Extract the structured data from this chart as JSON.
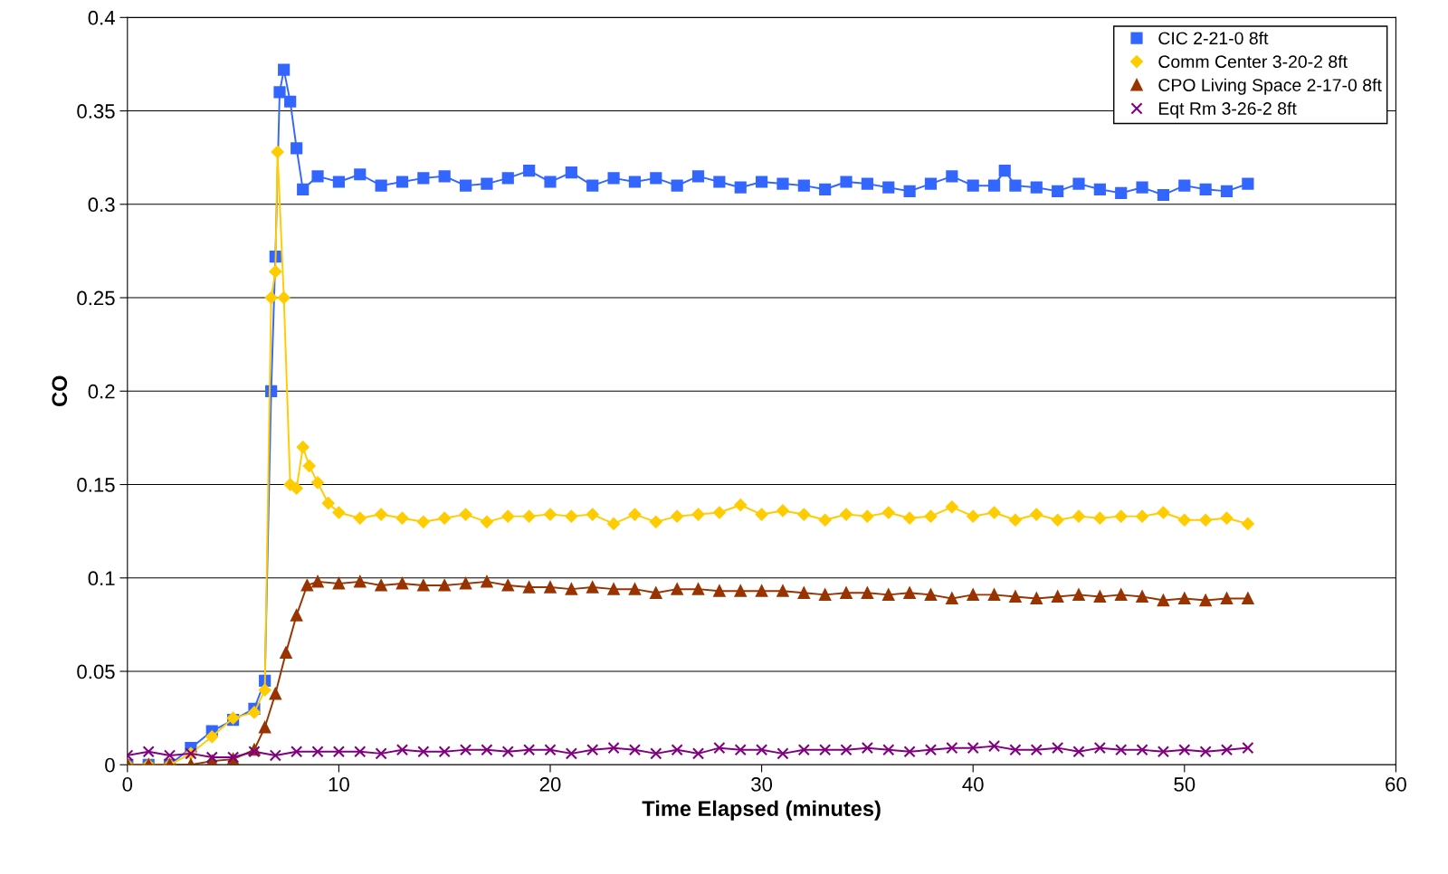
{
  "chart_data": {
    "type": "line",
    "xlabel": "Time Elapsed (minutes)",
    "ylabel": "CO",
    "xlim": [
      0,
      60
    ],
    "ylim": [
      0,
      0.4
    ],
    "xticks": [
      0,
      10,
      20,
      30,
      40,
      50,
      60
    ],
    "yticks": [
      0,
      0.05,
      0.1,
      0.15,
      0.2,
      0.25,
      0.3,
      0.35,
      0.4
    ],
    "grid": "y",
    "legend": "top right",
    "series": [
      {
        "name": "CIC 2-21-0 8ft",
        "color": "#3366ff",
        "marker": "square",
        "x": [
          0,
          1,
          2,
          3,
          4,
          5,
          6,
          6.5,
          6.8,
          7,
          7.2,
          7.4,
          7.7,
          8,
          8.3,
          9,
          10,
          11,
          12,
          13,
          14,
          15,
          16,
          17,
          18,
          19,
          20,
          21,
          22,
          23,
          24,
          25,
          26,
          27,
          28,
          29,
          30,
          31,
          32,
          33,
          34,
          35,
          36,
          37,
          38,
          39,
          40,
          41,
          41.5,
          42,
          43,
          44,
          45,
          46,
          47,
          48,
          49,
          50,
          51,
          52,
          53
        ],
        "values": [
          0,
          0,
          0,
          0.009,
          0.018,
          0.024,
          0.03,
          0.045,
          0.2,
          0.272,
          0.36,
          0.372,
          0.355,
          0.33,
          0.308,
          0.315,
          0.312,
          0.316,
          0.31,
          0.312,
          0.314,
          0.315,
          0.31,
          0.311,
          0.314,
          0.318,
          0.312,
          0.317,
          0.31,
          0.314,
          0.312,
          0.314,
          0.31,
          0.315,
          0.312,
          0.309,
          0.312,
          0.311,
          0.31,
          0.308,
          0.312,
          0.311,
          0.309,
          0.307,
          0.311,
          0.315,
          0.31,
          0.31,
          0.318,
          0.31,
          0.309,
          0.307,
          0.311,
          0.308,
          0.306,
          0.309,
          0.305,
          0.31,
          0.308,
          0.307,
          0.311
        ]
      },
      {
        "name": "Comm Center 3-20-2 8ft",
        "color": "#ffcc00",
        "marker": "diamond",
        "x": [
          0,
          1,
          2,
          3,
          4,
          5,
          6,
          6.5,
          6.8,
          7,
          7.1,
          7.4,
          7.7,
          8,
          8.3,
          8.6,
          9,
          9.5,
          10,
          11,
          12,
          13,
          14,
          15,
          16,
          17,
          18,
          19,
          20,
          21,
          22,
          23,
          24,
          25,
          26,
          27,
          28,
          29,
          30,
          31,
          32,
          33,
          34,
          35,
          36,
          37,
          38,
          39,
          40,
          41,
          42,
          43,
          44,
          45,
          46,
          47,
          48,
          49,
          50,
          51,
          52,
          53
        ],
        "values": [
          0,
          0,
          0,
          0.006,
          0.015,
          0.025,
          0.028,
          0.04,
          0.25,
          0.264,
          0.328,
          0.25,
          0.15,
          0.148,
          0.17,
          0.16,
          0.151,
          0.14,
          0.135,
          0.132,
          0.134,
          0.132,
          0.13,
          0.132,
          0.134,
          0.13,
          0.133,
          0.133,
          0.134,
          0.133,
          0.134,
          0.129,
          0.134,
          0.13,
          0.133,
          0.134,
          0.135,
          0.139,
          0.134,
          0.136,
          0.134,
          0.131,
          0.134,
          0.133,
          0.135,
          0.132,
          0.133,
          0.138,
          0.133,
          0.135,
          0.131,
          0.134,
          0.131,
          0.133,
          0.132,
          0.133,
          0.133,
          0.135,
          0.131,
          0.131,
          0.132,
          0.129
        ]
      },
      {
        "name": "CPO Living Space 2-17-0 8ft",
        "color": "#993300",
        "marker": "triangle",
        "x": [
          0,
          1,
          2,
          3,
          4,
          5,
          6,
          6.5,
          7,
          7.5,
          8,
          8.5,
          9,
          10,
          11,
          12,
          13,
          14,
          15,
          16,
          17,
          18,
          19,
          20,
          21,
          22,
          23,
          24,
          25,
          26,
          27,
          28,
          29,
          30,
          31,
          32,
          33,
          34,
          35,
          36,
          37,
          38,
          39,
          40,
          41,
          42,
          43,
          44,
          45,
          46,
          47,
          48,
          49,
          50,
          51,
          52,
          53
        ],
        "values": [
          0,
          0,
          0,
          0,
          0.002,
          0.003,
          0.008,
          0.02,
          0.038,
          0.06,
          0.08,
          0.096,
          0.098,
          0.097,
          0.098,
          0.096,
          0.097,
          0.096,
          0.096,
          0.097,
          0.098,
          0.096,
          0.095,
          0.095,
          0.094,
          0.095,
          0.094,
          0.094,
          0.092,
          0.094,
          0.094,
          0.093,
          0.093,
          0.093,
          0.093,
          0.092,
          0.091,
          0.092,
          0.092,
          0.091,
          0.092,
          0.091,
          0.089,
          0.091,
          0.091,
          0.09,
          0.089,
          0.09,
          0.091,
          0.09,
          0.091,
          0.09,
          0.088,
          0.089,
          0.088,
          0.089,
          0.089
        ]
      },
      {
        "name": "Eqt Rm 3-26-2 8ft",
        "color": "#800080",
        "marker": "cross",
        "x": [
          0,
          1,
          2,
          3,
          4,
          5,
          6,
          7,
          8,
          9,
          10,
          11,
          12,
          13,
          14,
          15,
          16,
          17,
          18,
          19,
          20,
          21,
          22,
          23,
          24,
          25,
          26,
          27,
          28,
          29,
          30,
          31,
          32,
          33,
          34,
          35,
          36,
          37,
          38,
          39,
          40,
          41,
          42,
          43,
          44,
          45,
          46,
          47,
          48,
          49,
          50,
          51,
          52,
          53
        ],
        "values": [
          0.005,
          0.007,
          0.005,
          0.006,
          0.004,
          0.004,
          0.007,
          0.005,
          0.007,
          0.007,
          0.007,
          0.007,
          0.006,
          0.008,
          0.007,
          0.007,
          0.008,
          0.008,
          0.007,
          0.008,
          0.008,
          0.006,
          0.008,
          0.009,
          0.008,
          0.006,
          0.008,
          0.006,
          0.009,
          0.008,
          0.008,
          0.006,
          0.008,
          0.008,
          0.008,
          0.009,
          0.008,
          0.007,
          0.008,
          0.009,
          0.009,
          0.01,
          0.008,
          0.008,
          0.009,
          0.007,
          0.009,
          0.008,
          0.008,
          0.007,
          0.008,
          0.007,
          0.008,
          0.009
        ]
      }
    ]
  }
}
